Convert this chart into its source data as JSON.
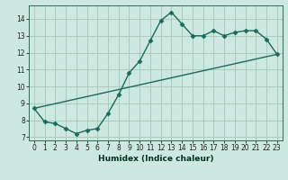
{
  "xlabel": "Humidex (Indice chaleur)",
  "background_color": "#cde8e0",
  "grid_color": "#aaccbb",
  "line_color": "#1a6b5a",
  "xlim": [
    -0.5,
    23.5
  ],
  "ylim": [
    6.8,
    14.8
  ],
  "xticks": [
    0,
    1,
    2,
    3,
    4,
    5,
    6,
    7,
    8,
    9,
    10,
    11,
    12,
    13,
    14,
    15,
    16,
    17,
    18,
    19,
    20,
    21,
    22,
    23
  ],
  "yticks": [
    7,
    8,
    9,
    10,
    11,
    12,
    13,
    14
  ],
  "curve1_x": [
    0,
    1,
    2,
    3,
    4,
    5,
    6,
    7,
    8,
    9,
    10,
    11,
    12,
    13,
    14,
    15,
    16,
    17,
    18,
    19,
    20,
    21,
    22,
    23
  ],
  "curve1_y": [
    8.7,
    7.9,
    7.8,
    7.5,
    7.2,
    7.4,
    7.5,
    8.4,
    9.5,
    10.8,
    11.5,
    12.7,
    13.9,
    14.4,
    13.7,
    13.0,
    13.0,
    13.3,
    13.0,
    13.2,
    13.3,
    13.3,
    12.8,
    11.9
  ],
  "curve2_x": [
    0,
    23
  ],
  "curve2_y": [
    8.7,
    11.9
  ],
  "marker": "D",
  "marker_size": 2.5,
  "line_width": 1.0,
  "tick_fontsize": 5.5,
  "xlabel_fontsize": 6.5
}
